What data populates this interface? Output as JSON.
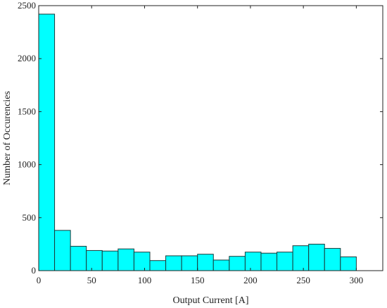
{
  "chart_data": {
    "type": "bar",
    "subtype": "histogram",
    "xlabel": "Output Current [A]",
    "ylabel": "Number of Occurencies",
    "xlim": [
      0,
      325
    ],
    "ylim": [
      0,
      2500
    ],
    "xticks": [
      0,
      50,
      100,
      150,
      200,
      250,
      300
    ],
    "yticks": [
      0,
      500,
      1000,
      1500,
      2000,
      2500
    ],
    "bin_width": 15,
    "bin_edges": [
      0,
      15,
      30,
      45,
      60,
      75,
      90,
      105,
      120,
      135,
      150,
      165,
      180,
      195,
      210,
      225,
      240,
      255,
      270,
      285,
      300
    ],
    "values": [
      2420,
      380,
      230,
      190,
      185,
      205,
      175,
      95,
      140,
      140,
      155,
      100,
      135,
      175,
      165,
      175,
      235,
      250,
      210,
      130
    ],
    "grid": false,
    "bar_color": "#00ffff",
    "edge_color": "#1a3a3a"
  }
}
